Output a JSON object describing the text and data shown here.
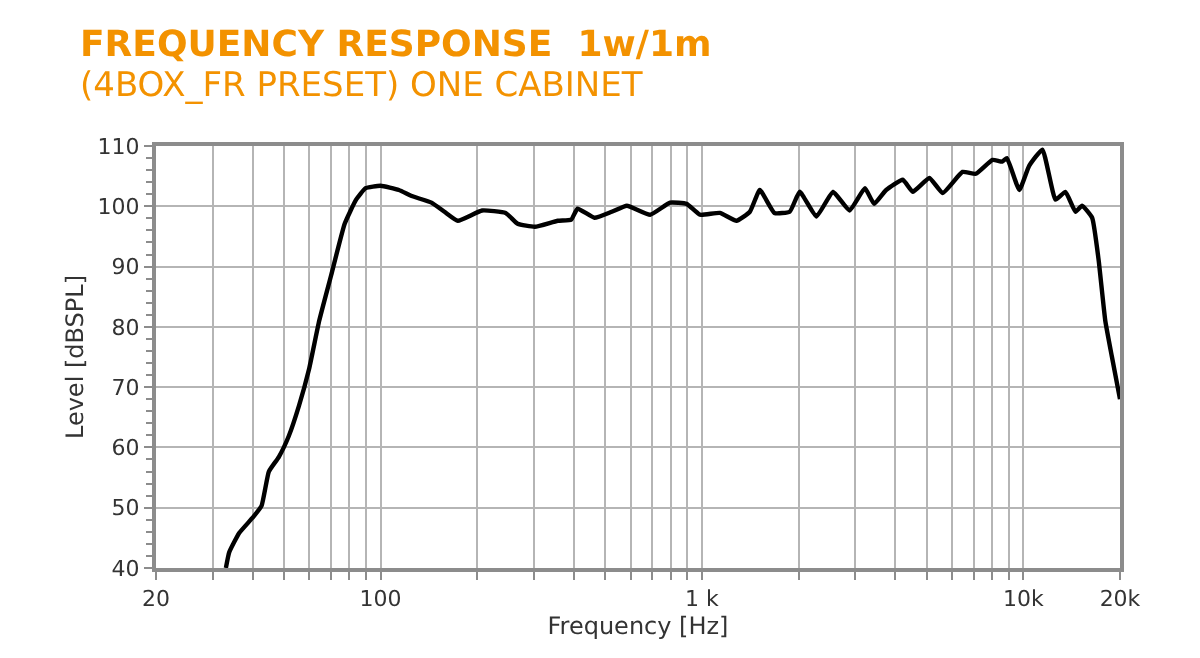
{
  "chart_data": {
    "type": "line",
    "title": "FREQUENCY RESPONSE  1w/1m",
    "subtitle": "(4BOX_FR PRESET) ONE CABINET",
    "xlabel": "Frequency [Hz]",
    "ylabel": "Level [dBSPL]",
    "log": "x",
    "grid": true,
    "marker": "none",
    "line_style": "solid",
    "xlim": [
      20,
      20000
    ],
    "ylim": [
      40,
      110
    ],
    "xticks": [
      20,
      {
        "value": 30,
        "label": null
      },
      {
        "value": 40,
        "label": null
      },
      {
        "value": 50,
        "label": null
      },
      {
        "value": 60,
        "label": null
      },
      {
        "value": 70,
        "label": null
      },
      {
        "value": 80,
        "label": null
      },
      {
        "value": 90,
        "label": null
      },
      100,
      {
        "value": 200,
        "label": null
      },
      {
        "value": 300,
        "label": null
      },
      {
        "value": 400,
        "label": null
      },
      {
        "value": 500,
        "label": null
      },
      {
        "value": 600,
        "label": null
      },
      {
        "value": 700,
        "label": null
      },
      {
        "value": 800,
        "label": null
      },
      {
        "value": 900,
        "label": null
      },
      {
        "value": 1000,
        "label": "1 k"
      },
      {
        "value": 2000,
        "label": null
      },
      {
        "value": 3000,
        "label": null
      },
      {
        "value": 4000,
        "label": null
      },
      {
        "value": 5000,
        "label": null
      },
      {
        "value": 6000,
        "label": null
      },
      {
        "value": 7000,
        "label": null
      },
      {
        "value": 8000,
        "label": null
      },
      {
        "value": 9000,
        "label": null
      },
      {
        "value": 10000,
        "label": "10k"
      },
      {
        "value": 20000,
        "label": "20k"
      }
    ],
    "yticks": [
      40,
      50,
      60,
      70,
      80,
      90,
      100,
      110
    ],
    "series": [
      {
        "color": "#000000",
        "x": [
          33,
          33.8,
          36.3,
          39.9,
          42.6,
          44.9,
          48.2,
          51.8,
          55.7,
          59.9,
          64.4,
          70.2,
          77.3,
          83.9,
          89.8,
          100,
          114,
          125,
          144,
          158,
          174,
          207,
          245,
          267,
          302,
          356,
          392,
          410,
          463,
          524,
          584,
          690,
          796,
          896,
          986,
          1137,
          1281,
          1410,
          1514,
          1681,
          1876,
          2015,
          2271,
          2557,
          2880,
          3215,
          3435,
          3743,
          4217,
          4530,
          5103,
          5613,
          6470,
          7122,
          8024,
          8602,
          8896,
          9719,
          10430,
          11470,
          12600,
          13530,
          14540,
          15240,
          16380,
          17160,
          18000,
          18880,
          20000
        ],
        "values": [
          40,
          42.6,
          45.8,
          48.3,
          50.3,
          56,
          58.4,
          61.9,
          66.9,
          73,
          81,
          88.6,
          97.1,
          101.1,
          103,
          103.4,
          102.7,
          101.7,
          100.6,
          99.1,
          97.6,
          99.3,
          98.9,
          97.1,
          96.6,
          97.6,
          97.8,
          99.6,
          98.1,
          99.1,
          100.1,
          98.6,
          100.6,
          100.4,
          98.6,
          98.9,
          97.6,
          99.1,
          102.7,
          98.9,
          99.1,
          102.4,
          98.3,
          102.4,
          99.3,
          103,
          100.4,
          102.7,
          104.4,
          102.4,
          104.7,
          102.2,
          105.7,
          105.4,
          107.7,
          107.4,
          108,
          102.7,
          106.7,
          109.4,
          101.1,
          102.4,
          99.1,
          100.1,
          98.1,
          91.1,
          81,
          75,
          68
        ]
      }
    ]
  }
}
